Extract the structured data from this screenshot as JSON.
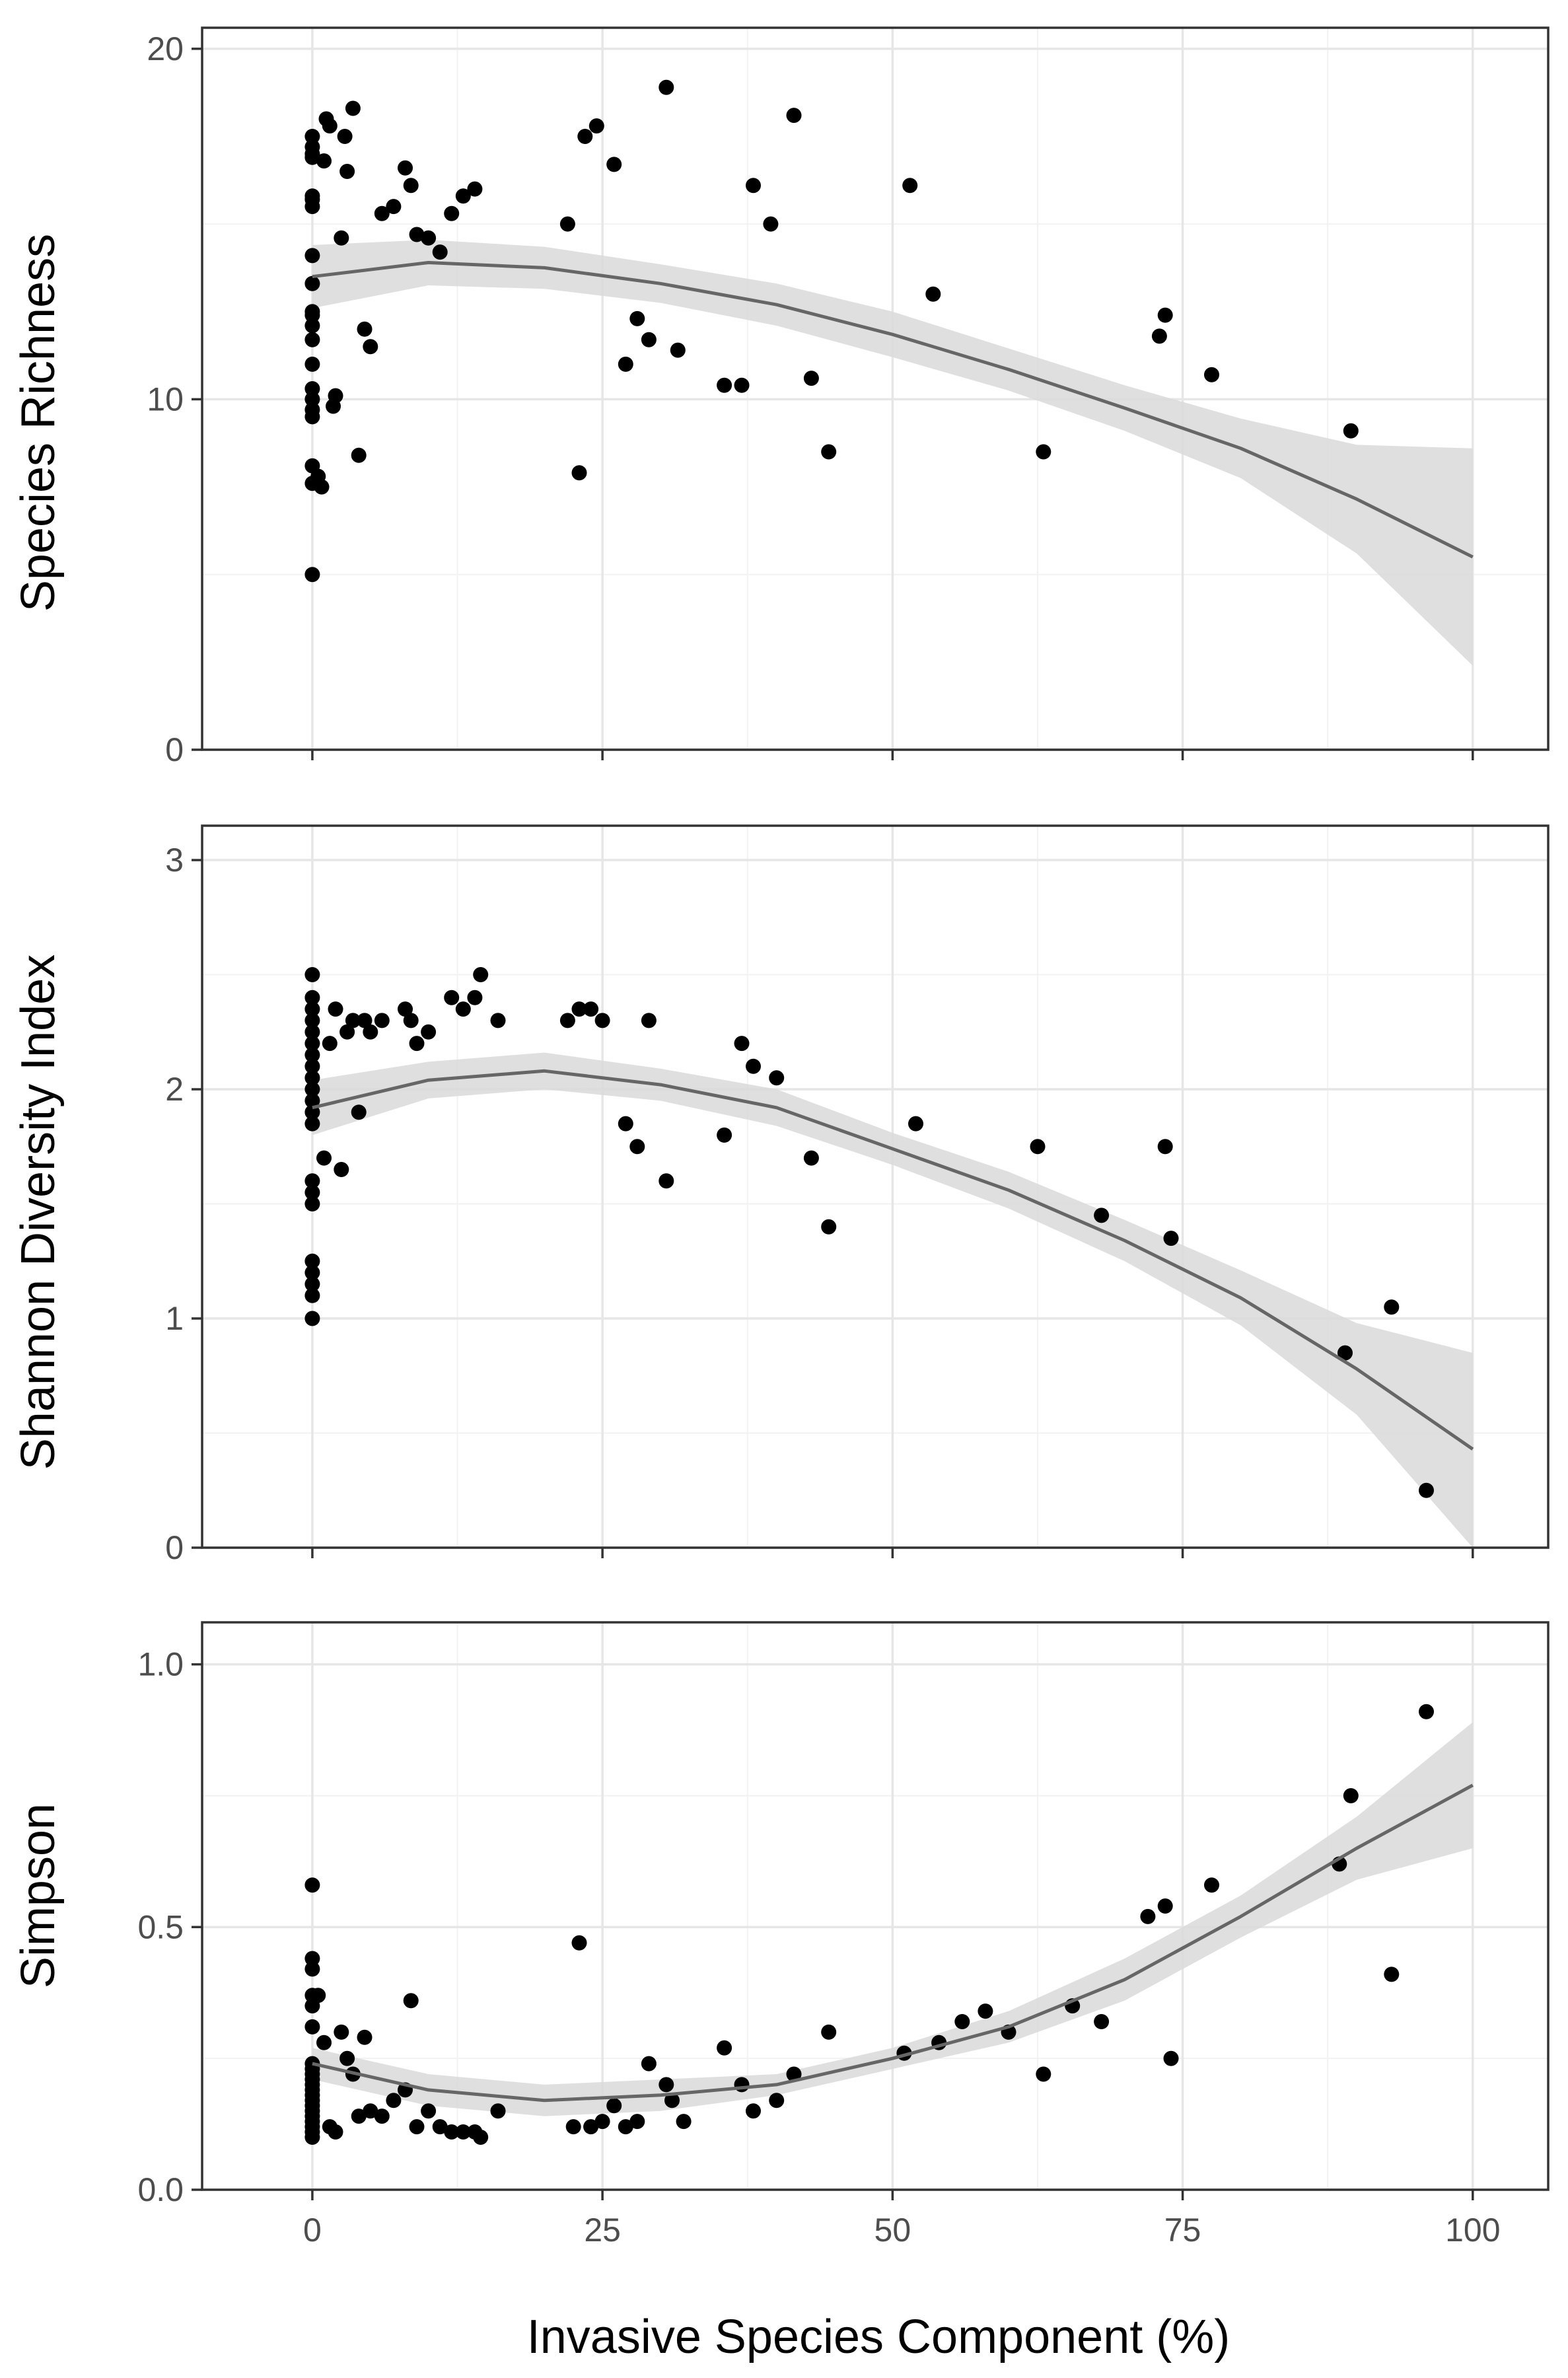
{
  "figure": {
    "xlabel": "Invasive Species Component (%)",
    "xlim": [
      -9.5,
      106.5
    ],
    "xticks": [
      0,
      25,
      50,
      75,
      100
    ],
    "xtick_labels": [
      "0",
      "25",
      "50",
      "75",
      "100"
    ]
  },
  "chart_data": [
    {
      "type": "scatter",
      "title": "",
      "xlabel": "Invasive Species Component (%)",
      "ylabel": "Species Richness",
      "xlim": [
        -9.5,
        106.5
      ],
      "ylim": [
        0,
        20.6
      ],
      "yticks": [
        0,
        10,
        20
      ],
      "ytick_labels": [
        "0",
        "10",
        "20"
      ],
      "grid": true,
      "point_color": "#000000",
      "points": {
        "x": [
          0,
          0,
          0,
          0,
          0,
          0,
          0,
          0,
          0,
          0,
          0,
          0,
          0,
          0,
          0,
          0,
          0,
          0,
          0,
          0,
          0,
          0.5,
          0.8,
          1,
          1.2,
          1.5,
          1.8,
          2,
          2.5,
          2.8,
          3,
          3.5,
          4,
          4.5,
          5,
          6,
          7,
          8,
          8.5,
          9,
          10,
          11,
          12,
          13,
          14,
          22,
          23,
          23.5,
          24.5,
          26,
          27,
          28,
          29,
          30.5,
          31.5,
          35.5,
          37,
          38,
          39.5,
          41.5,
          43,
          44.5,
          51.5,
          53.5,
          63,
          73,
          73.5,
          77.5,
          89.5
        ],
        "y": [
          17.5,
          17.2,
          16.9,
          15.7,
          15.5,
          14.1,
          13.3,
          12.5,
          12.1,
          11.7,
          10.3,
          10.0,
          9.7,
          9.5,
          8.1,
          7.6,
          5.0,
          17.0,
          15.8,
          12.4,
          11.0,
          7.8,
          7.5,
          16.8,
          18.0,
          17.8,
          9.8,
          10.1,
          14.6,
          17.5,
          16.5,
          18.3,
          8.4,
          12.0,
          11.5,
          15.3,
          15.5,
          16.6,
          16.1,
          14.7,
          14.6,
          14.2,
          15.3,
          15.8,
          16.0,
          15.0,
          7.9,
          17.5,
          17.8,
          16.7,
          11.0,
          12.3,
          11.7,
          18.9,
          11.4,
          10.4,
          10.4,
          16.1,
          15.0,
          18.1,
          10.6,
          8.5,
          16.1,
          13.0,
          8.5,
          11.8,
          12.4,
          10.7,
          9.1
        ]
      },
      "fit": {
        "method": "loess",
        "x": [
          0,
          10,
          20,
          30,
          40,
          50,
          60,
          70,
          80,
          90,
          100
        ],
        "y": [
          13.5,
          13.9,
          13.75,
          13.3,
          12.7,
          11.85,
          10.85,
          9.75,
          8.6,
          7.15,
          5.5
        ],
        "ci_lower": [
          12.6,
          13.25,
          13.15,
          12.75,
          12.1,
          11.2,
          10.25,
          9.1,
          7.75,
          5.6,
          2.4
        ],
        "ci_upper": [
          14.4,
          14.55,
          14.35,
          13.85,
          13.3,
          12.5,
          11.45,
          10.4,
          9.45,
          8.7,
          8.6
        ],
        "band_color": "#d9d9d9",
        "line_color": "#666666"
      }
    },
    {
      "type": "scatter",
      "title": "",
      "xlabel": "Invasive Species Component (%)",
      "ylabel": "Shannon Diversity Index",
      "xlim": [
        -9.5,
        106.5
      ],
      "ylim": [
        0,
        3.15
      ],
      "yticks": [
        0,
        1,
        2,
        3
      ],
      "ytick_labels": [
        "0",
        "1",
        "2",
        "3"
      ],
      "grid": true,
      "point_color": "#000000",
      "points": {
        "x": [
          0,
          0,
          0,
          0,
          0,
          0,
          0,
          0,
          0,
          0,
          0,
          0,
          0,
          0,
          0,
          0,
          0,
          0,
          0,
          0,
          0,
          1,
          1.5,
          2,
          2.5,
          3,
          3.5,
          4,
          4.5,
          5,
          6,
          8,
          8.5,
          9,
          10,
          12,
          13,
          14,
          14.5,
          16,
          22,
          23,
          24,
          25,
          27,
          28,
          29,
          30.5,
          35.5,
          37,
          38,
          40,
          43,
          44.5,
          52,
          62.5,
          68,
          73.5,
          74,
          89,
          93,
          96
        ],
        "y": [
          2.5,
          2.4,
          2.35,
          2.3,
          2.25,
          2.2,
          2.15,
          2.1,
          2.05,
          2.0,
          1.95,
          1.9,
          1.85,
          1.6,
          1.55,
          1.5,
          1.25,
          1.2,
          1.15,
          1.1,
          1.0,
          1.7,
          2.2,
          2.35,
          1.65,
          2.25,
          2.3,
          1.9,
          2.3,
          2.25,
          2.3,
          2.35,
          2.3,
          2.2,
          2.25,
          2.4,
          2.35,
          2.4,
          2.5,
          2.3,
          2.3,
          2.35,
          2.35,
          2.3,
          1.85,
          1.75,
          2.3,
          1.6,
          1.8,
          2.2,
          2.1,
          2.05,
          1.7,
          1.4,
          1.85,
          1.75,
          1.45,
          1.75,
          1.35,
          0.85,
          1.05,
          0.25
        ]
      },
      "fit": {
        "method": "loess",
        "x": [
          0,
          10,
          20,
          30,
          40,
          50,
          60,
          70,
          80,
          90,
          100
        ],
        "y": [
          1.92,
          2.04,
          2.08,
          2.02,
          1.92,
          1.74,
          1.56,
          1.34,
          1.09,
          0.78,
          0.43
        ],
        "ci_lower": [
          1.8,
          1.96,
          2.0,
          1.95,
          1.84,
          1.67,
          1.48,
          1.25,
          0.97,
          0.58,
          0.0
        ],
        "ci_upper": [
          2.04,
          2.12,
          2.16,
          2.09,
          2.0,
          1.81,
          1.64,
          1.43,
          1.21,
          0.98,
          0.85
        ],
        "band_color": "#d9d9d9",
        "line_color": "#666666"
      }
    },
    {
      "type": "scatter",
      "title": "",
      "xlabel": "Invasive Species Component (%)",
      "ylabel": "Simpson",
      "xlim": [
        -9.5,
        106.5
      ],
      "ylim": [
        0,
        1.08
      ],
      "yticks": [
        0.0,
        0.5,
        1.0
      ],
      "ytick_labels": [
        "0.0",
        "0.5",
        "1.0"
      ],
      "grid": true,
      "point_color": "#000000",
      "points": {
        "x": [
          0,
          0,
          0,
          0,
          0,
          0,
          0,
          0,
          0,
          0,
          0,
          0,
          0,
          0,
          0,
          0,
          0,
          0,
          0,
          0,
          0,
          0.5,
          1,
          1.5,
          2,
          2.5,
          3,
          3.5,
          4,
          4.5,
          5,
          6,
          7,
          8,
          8.5,
          9,
          10,
          11,
          12,
          13,
          14,
          14.5,
          16,
          22.5,
          23,
          24,
          25,
          26,
          27,
          28,
          29,
          30.5,
          31,
          32,
          35.5,
          37,
          38,
          40,
          41.5,
          44.5,
          51,
          54,
          56,
          58,
          60,
          63,
          65.5,
          68,
          72,
          73.5,
          74,
          77.5,
          88.5,
          89.5,
          93,
          96
        ],
        "y": [
          0.58,
          0.44,
          0.42,
          0.37,
          0.35,
          0.31,
          0.24,
          0.23,
          0.22,
          0.21,
          0.2,
          0.19,
          0.18,
          0.17,
          0.16,
          0.15,
          0.14,
          0.13,
          0.12,
          0.11,
          0.1,
          0.37,
          0.28,
          0.12,
          0.11,
          0.3,
          0.25,
          0.22,
          0.14,
          0.29,
          0.15,
          0.14,
          0.17,
          0.19,
          0.36,
          0.12,
          0.15,
          0.12,
          0.11,
          0.11,
          0.11,
          0.1,
          0.15,
          0.12,
          0.47,
          0.12,
          0.13,
          0.16,
          0.12,
          0.13,
          0.24,
          0.2,
          0.17,
          0.13,
          0.27,
          0.2,
          0.15,
          0.17,
          0.22,
          0.3,
          0.26,
          0.28,
          0.32,
          0.34,
          0.3,
          0.22,
          0.35,
          0.32,
          0.52,
          0.54,
          0.25,
          0.58,
          0.62,
          0.75,
          0.41,
          0.91
        ]
      },
      "fit": {
        "method": "loess",
        "x": [
          0,
          10,
          20,
          30,
          40,
          50,
          60,
          70,
          80,
          90,
          100
        ],
        "y": [
          0.24,
          0.19,
          0.17,
          0.18,
          0.2,
          0.25,
          0.31,
          0.4,
          0.52,
          0.65,
          0.77
        ],
        "ci_lower": [
          0.21,
          0.16,
          0.14,
          0.15,
          0.18,
          0.23,
          0.28,
          0.36,
          0.48,
          0.59,
          0.65
        ],
        "ci_upper": [
          0.27,
          0.22,
          0.2,
          0.21,
          0.22,
          0.27,
          0.34,
          0.44,
          0.56,
          0.71,
          0.89
        ],
        "band_color": "#d9d9d9",
        "line_color": "#666666"
      }
    }
  ]
}
